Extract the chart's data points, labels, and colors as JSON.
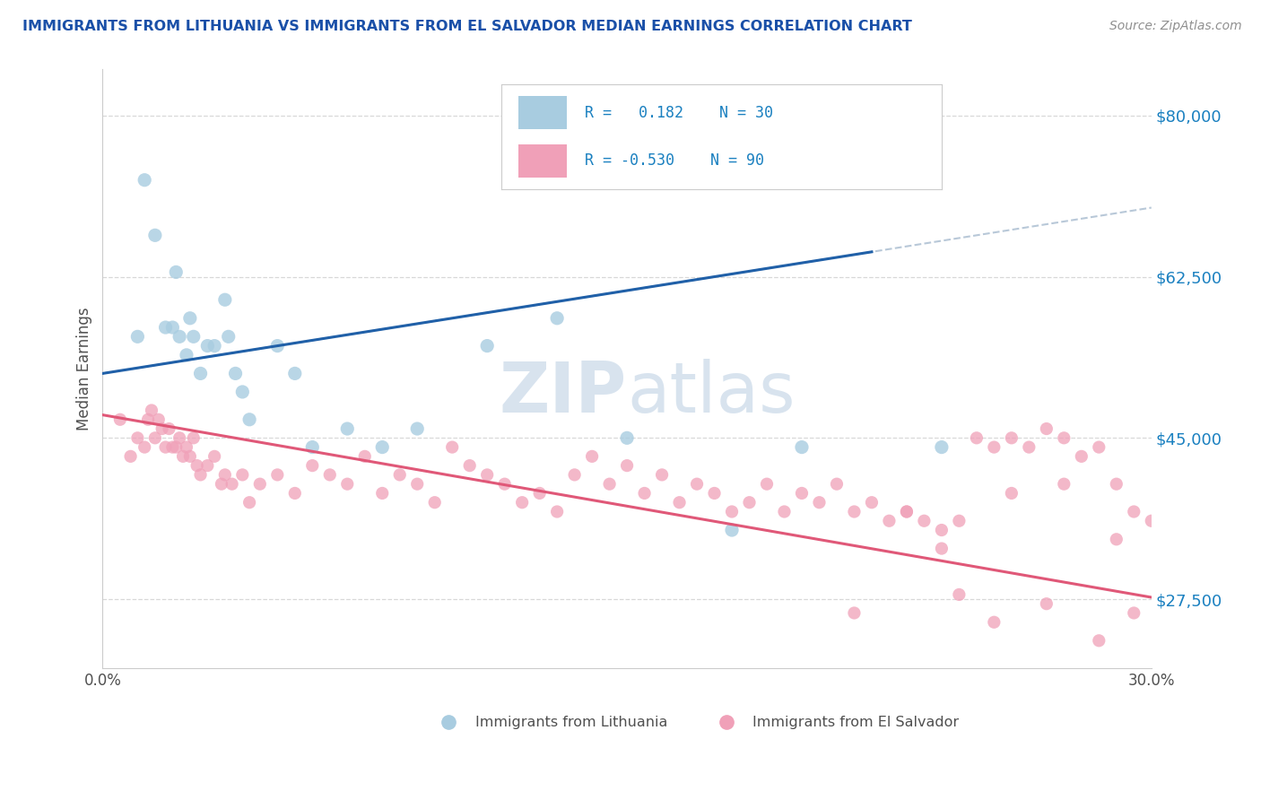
{
  "title": "IMMIGRANTS FROM LITHUANIA VS IMMIGRANTS FROM EL SALVADOR MEDIAN EARNINGS CORRELATION CHART",
  "source": "Source: ZipAtlas.com",
  "ylabel": "Median Earnings",
  "y_tick_labels": [
    "$27,500",
    "$45,000",
    "$62,500",
    "$80,000"
  ],
  "y_tick_values": [
    27500,
    45000,
    62500,
    80000
  ],
  "xlim": [
    0.0,
    30.0
  ],
  "ylim": [
    20000,
    85000
  ],
  "legend_label1": "Immigrants from Lithuania",
  "legend_label2": "Immigrants from El Salvador",
  "blue_scatter_color": "#a8cce0",
  "pink_scatter_color": "#f0a0b8",
  "blue_line_color": "#2060a8",
  "pink_line_color": "#e05878",
  "gray_dash_color": "#b8c8d8",
  "title_color": "#1a50a8",
  "source_color": "#909090",
  "watermark_color": "#c8d8e8",
  "axis_label_color": "#505050",
  "right_tick_color": "#1a80c0",
  "grid_color": "#d8d8d8",
  "background": "#ffffff",
  "blue_line_intercept": 52000,
  "blue_line_slope": 600,
  "pink_line_intercept": 47500,
  "pink_line_slope": -660,
  "blue_x": [
    1.0,
    1.2,
    1.5,
    1.8,
    2.0,
    2.1,
    2.2,
    2.4,
    2.5,
    2.6,
    2.8,
    3.0,
    3.2,
    3.5,
    3.6,
    3.8,
    4.0,
    4.2,
    5.0,
    5.5,
    6.0,
    7.0,
    8.0,
    9.0,
    11.0,
    13.0,
    15.0,
    18.0,
    20.0,
    24.0
  ],
  "blue_y": [
    56000,
    73000,
    67000,
    57000,
    57000,
    63000,
    56000,
    54000,
    58000,
    56000,
    52000,
    55000,
    55000,
    60000,
    56000,
    52000,
    50000,
    47000,
    55000,
    52000,
    44000,
    46000,
    44000,
    46000,
    55000,
    58000,
    45000,
    35000,
    44000,
    44000
  ],
  "pink_x": [
    0.5,
    0.8,
    1.0,
    1.2,
    1.3,
    1.4,
    1.5,
    1.6,
    1.7,
    1.8,
    1.9,
    2.0,
    2.1,
    2.2,
    2.3,
    2.4,
    2.5,
    2.6,
    2.7,
    2.8,
    3.0,
    3.2,
    3.4,
    3.5,
    3.7,
    4.0,
    4.2,
    4.5,
    5.0,
    5.5,
    6.0,
    6.5,
    7.0,
    7.5,
    8.0,
    8.5,
    9.0,
    9.5,
    10.0,
    10.5,
    11.0,
    11.5,
    12.0,
    12.5,
    13.0,
    13.5,
    14.0,
    14.5,
    15.0,
    15.5,
    16.0,
    16.5,
    17.0,
    17.5,
    18.0,
    18.5,
    19.0,
    19.5,
    20.0,
    20.5,
    21.0,
    21.5,
    22.0,
    22.5,
    23.0,
    23.5,
    24.0,
    24.5,
    25.0,
    25.5,
    26.0,
    26.5,
    27.0,
    27.5,
    28.0,
    28.5,
    29.0,
    29.5,
    30.0,
    24.5,
    25.5,
    27.0,
    28.5,
    29.5,
    21.5,
    23.0,
    24.0,
    26.0,
    27.5,
    29.0
  ],
  "pink_y": [
    47000,
    43000,
    45000,
    44000,
    47000,
    48000,
    45000,
    47000,
    46000,
    44000,
    46000,
    44000,
    44000,
    45000,
    43000,
    44000,
    43000,
    45000,
    42000,
    41000,
    42000,
    43000,
    40000,
    41000,
    40000,
    41000,
    38000,
    40000,
    41000,
    39000,
    42000,
    41000,
    40000,
    43000,
    39000,
    41000,
    40000,
    38000,
    44000,
    42000,
    41000,
    40000,
    38000,
    39000,
    37000,
    41000,
    43000,
    40000,
    42000,
    39000,
    41000,
    38000,
    40000,
    39000,
    37000,
    38000,
    40000,
    37000,
    39000,
    38000,
    40000,
    37000,
    38000,
    36000,
    37000,
    36000,
    35000,
    36000,
    45000,
    44000,
    45000,
    44000,
    46000,
    45000,
    43000,
    44000,
    40000,
    37000,
    36000,
    28000,
    25000,
    27000,
    23000,
    26000,
    26000,
    37000,
    33000,
    39000,
    40000,
    34000
  ]
}
